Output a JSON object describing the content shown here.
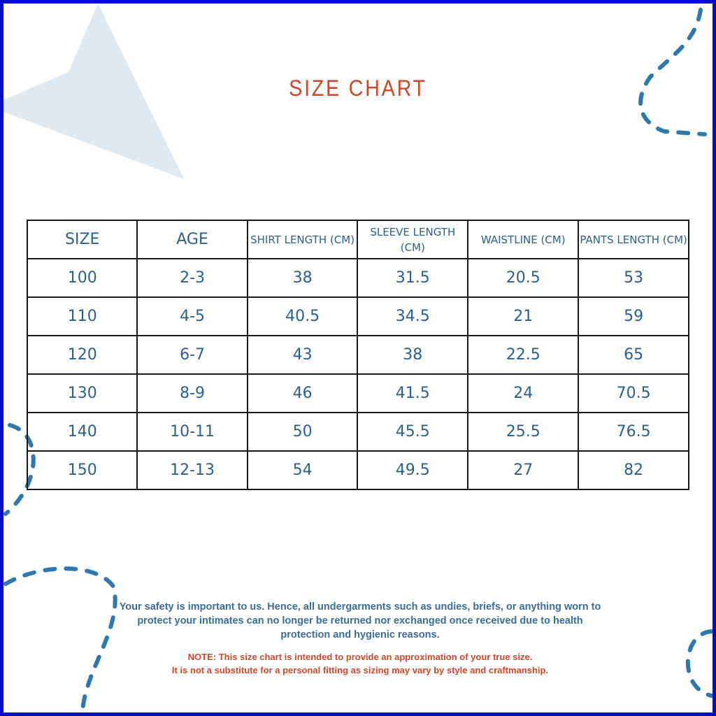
{
  "title": "SIZE CHART",
  "table": {
    "headers": [
      "SIZE",
      "AGE",
      "SHIRT LENGTH (CM)",
      "SLEEVE LENGTH (CM)",
      "WAISTLINE (CM)",
      "PANTS LENGTH (CM)"
    ],
    "rows": [
      [
        "100",
        "2-3",
        "38",
        "31.5",
        "20.5",
        "53"
      ],
      [
        "110",
        "4-5",
        "40.5",
        "34.5",
        "21",
        "59"
      ],
      [
        "120",
        "6-7",
        "43",
        "38",
        "22.5",
        "65"
      ],
      [
        "130",
        "8-9",
        "46",
        "41.5",
        "24",
        "70.5"
      ],
      [
        "140",
        "10-11",
        "50",
        "45.5",
        "25.5",
        "76.5"
      ],
      [
        "150",
        "12-13",
        "54",
        "49.5",
        "27",
        "82"
      ]
    ]
  },
  "safety_text": "Your safety is important to us. Hence, all undergarments such as undies, briefs, or anything worn to protect your intimates can no longer be returned nor exchanged once received due to health protection and hygienic reasons.",
  "note_line1": "NOTE: This size chart is intended to provide an approximation of your true size.",
  "note_line2": "It is not a substitute for a personal fitting as sizing may vary by style and craftmanship.",
  "colors": {
    "title": "#c9482a",
    "table_text": "#2d5f8e",
    "frame": "#0909c8",
    "dashes": "#2f78ad",
    "triangle": "#dfe9f2"
  }
}
